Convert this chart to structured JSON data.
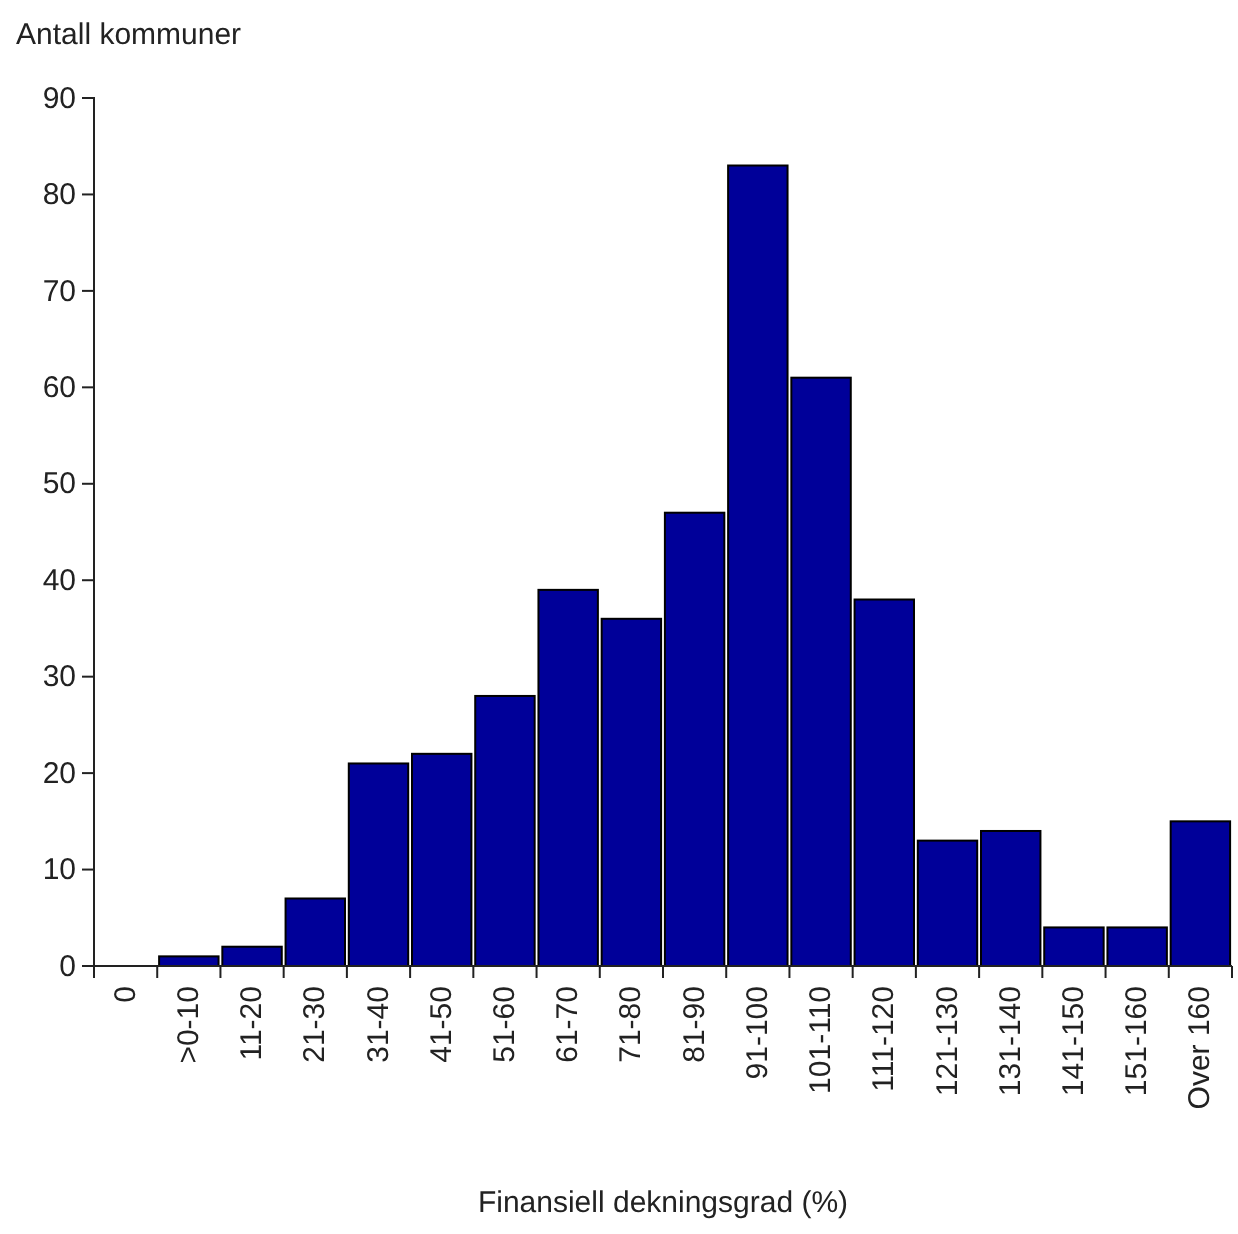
{
  "chart_data": {
    "type": "bar",
    "title": "Antall kommuner",
    "xlabel": "Finansiell dekningsgrad (%)",
    "categories": [
      "0",
      ">0-10",
      "11-20",
      "21-30",
      "31-40",
      "41-50",
      "51-60",
      "61-70",
      "71-80",
      "81-90",
      "91-100",
      "101-110",
      "111-120",
      "121-130",
      "131-140",
      "141-150",
      "151-160",
      "Over 160"
    ],
    "values": [
      0,
      1,
      2,
      7,
      21,
      22,
      28,
      39,
      36,
      47,
      83,
      61,
      38,
      13,
      14,
      4,
      4,
      15
    ],
    "color": "#000099",
    "ylim": [
      0,
      90
    ],
    "yticks": [
      0,
      10,
      20,
      30,
      40,
      50,
      60,
      70,
      80,
      90
    ],
    "grid": false
  }
}
